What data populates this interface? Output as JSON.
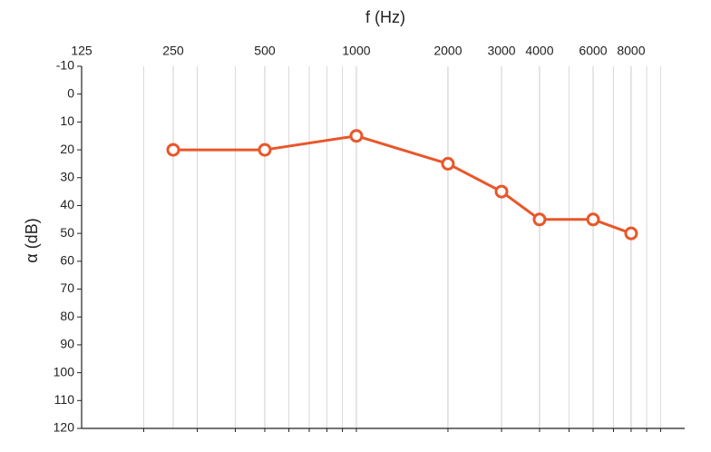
{
  "chart_data": {
    "type": "line",
    "x_label": "f (Hz)",
    "y_label": "α (dB)",
    "x": [
      250,
      500,
      1000,
      2000,
      3000,
      4000,
      6000,
      8000
    ],
    "values": [
      20,
      20,
      15,
      25,
      35,
      45,
      45,
      50
    ],
    "color": "#e8572a",
    "xlim": [
      125,
      12000
    ],
    "xticks": [
      125,
      250,
      500,
      1000,
      2000,
      3000,
      4000,
      6000,
      8000
    ],
    "x_log": true,
    "x_minor_grid": true,
    "ylim": [
      -10,
      120
    ],
    "yticks": [
      -10,
      0,
      10,
      20,
      30,
      40,
      50,
      60,
      70,
      80,
      90,
      100,
      110,
      120
    ],
    "y_inverted": true
  }
}
